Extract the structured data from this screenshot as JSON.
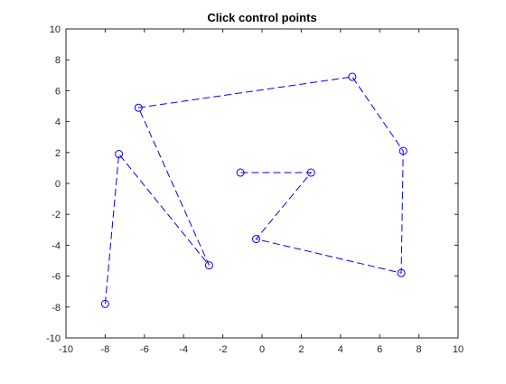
{
  "chart_data": {
    "type": "line",
    "title": "Click control points",
    "xlabel": "",
    "ylabel": "",
    "xlim": [
      -10,
      10
    ],
    "ylim": [
      -10,
      10
    ],
    "xticks": [
      "-10",
      "-8",
      "-6",
      "-4",
      "-2",
      "0",
      "2",
      "4",
      "6",
      "8",
      "10"
    ],
    "yticks": [
      "-10",
      "-8",
      "-6",
      "-4",
      "-2",
      "0",
      "2",
      "4",
      "6",
      "8",
      "10"
    ],
    "grid": false,
    "legend": "none",
    "series": [
      {
        "line_style": "dashed",
        "marker": "circle",
        "color": "#0000ff",
        "x": [
          -8.0,
          -7.3,
          -2.7,
          -6.3,
          4.6,
          7.2,
          7.1,
          -0.3,
          2.5,
          -1.1
        ],
        "y": [
          -7.8,
          1.9,
          -5.3,
          4.9,
          6.9,
          2.1,
          -5.8,
          -3.6,
          0.7,
          0.7
        ]
      }
    ]
  }
}
